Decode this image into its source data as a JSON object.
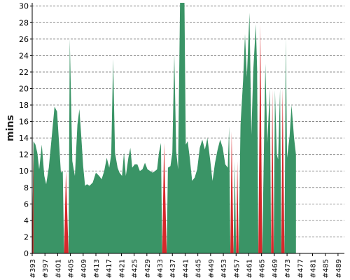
{
  "chart_data": {
    "type": "area",
    "ylabel": "mins",
    "ylim": [
      0,
      30.4
    ],
    "yticks": [
      0,
      2,
      4,
      6,
      8,
      10,
      12,
      14,
      16,
      18,
      20,
      22,
      24,
      26,
      28,
      30
    ],
    "grid": "horizontal dashed",
    "x_tick_labels": [
      "#393",
      "#397",
      "#401",
      "#405",
      "#409",
      "#413",
      "#417",
      "#421",
      "#425",
      "#429",
      "#433",
      "#437",
      "#441",
      "#445",
      "#449",
      "#453",
      "#457",
      "#461",
      "#465",
      "#469",
      "#473",
      "#477",
      "#481",
      "#485",
      "#489"
    ],
    "series": [
      {
        "color": "#3a9466",
        "values": [
          [
            393,
            0
          ],
          [
            393.4,
            13.6
          ],
          [
            394,
            13.2
          ],
          [
            394.6,
            12.2
          ],
          [
            395.2,
            10.2
          ],
          [
            396,
            13.2
          ],
          [
            396.8,
            9.4
          ],
          [
            397.4,
            8.4
          ],
          [
            398.2,
            10.4
          ],
          [
            399.2,
            14.4
          ],
          [
            400,
            17.8
          ],
          [
            400.8,
            17.2
          ],
          [
            401.4,
            13.6
          ],
          [
            402,
            9.8
          ],
          [
            402.6,
            10.0
          ],
          [
            403,
            0
          ],
          [
            404.4,
            0
          ],
          [
            404.8,
            26.0
          ],
          [
            405.6,
            11.2
          ],
          [
            406.4,
            9.4
          ],
          [
            407.2,
            15.6
          ],
          [
            407.8,
            17.5
          ],
          [
            408.4,
            14.2
          ],
          [
            409,
            10.6
          ],
          [
            409.6,
            8.2
          ],
          [
            410.2,
            8.4
          ],
          [
            411,
            8.2
          ],
          [
            412,
            8.6
          ],
          [
            413,
            9.8
          ],
          [
            414,
            9.4
          ],
          [
            414.8,
            9.0
          ],
          [
            415.6,
            10.0
          ],
          [
            416.4,
            11.6
          ],
          [
            417.2,
            10.4
          ],
          [
            417.8,
            12.0
          ],
          [
            418.4,
            23.6
          ],
          [
            419,
            12.2
          ],
          [
            419.8,
            10.4
          ],
          [
            420.4,
            9.8
          ],
          [
            421.2,
            9.4
          ],
          [
            421.8,
            12.2
          ],
          [
            422.4,
            9.4
          ],
          [
            423.2,
            11.6
          ],
          [
            423.8,
            12.8
          ],
          [
            424.4,
            10.4
          ],
          [
            425.2,
            10.8
          ],
          [
            426,
            10.8
          ],
          [
            426.8,
            10.0
          ],
          [
            427.6,
            10.2
          ],
          [
            428.4,
            11.0
          ],
          [
            429.2,
            10.2
          ],
          [
            430,
            10.0
          ],
          [
            430.8,
            9.8
          ],
          [
            431.6,
            10.0
          ],
          [
            432.2,
            10.2
          ],
          [
            432.8,
            12.2
          ],
          [
            433.4,
            13.4
          ],
          [
            433.8,
            0
          ],
          [
            435.2,
            0
          ],
          [
            435.6,
            10.4
          ],
          [
            436.4,
            10.6
          ],
          [
            437,
            12.2
          ],
          [
            437.6,
            24.2
          ],
          [
            438.2,
            12.4
          ],
          [
            438.8,
            10.2
          ],
          [
            439.4,
            30.4
          ],
          [
            440.8,
            30.4
          ],
          [
            441.2,
            13.2
          ],
          [
            441.8,
            13.6
          ],
          [
            442.4,
            11.8
          ],
          [
            443.2,
            8.8
          ],
          [
            444,
            9.2
          ],
          [
            444.8,
            10.2
          ],
          [
            445.6,
            12.8
          ],
          [
            446.4,
            13.8
          ],
          [
            447.2,
            12.6
          ],
          [
            448,
            14.0
          ],
          [
            448.8,
            11.6
          ],
          [
            449.6,
            8.8
          ],
          [
            450.4,
            11.0
          ],
          [
            451.2,
            12.6
          ],
          [
            452,
            13.8
          ],
          [
            452.8,
            12.8
          ],
          [
            453.6,
            10.8
          ],
          [
            454.4,
            10.4
          ],
          [
            454.8,
            15.4
          ],
          [
            455.2,
            0
          ],
          [
            456.2,
            0
          ],
          [
            456.6,
            11.2
          ],
          [
            457,
            0
          ],
          [
            457.8,
            0
          ],
          [
            458.4,
            15.6
          ],
          [
            459.2,
            21.0
          ],
          [
            459.8,
            26.6
          ],
          [
            460.4,
            21.4
          ],
          [
            461.2,
            29.2
          ],
          [
            461.8,
            14.4
          ],
          [
            462.4,
            22.2
          ],
          [
            463.2,
            27.8
          ],
          [
            463.6,
            22.4
          ],
          [
            464,
            0
          ],
          [
            465.2,
            0
          ],
          [
            465.8,
            14.0
          ],
          [
            466.2,
            23.0
          ],
          [
            466.8,
            13.4
          ],
          [
            467.6,
            20.0
          ],
          [
            468,
            0
          ],
          [
            468.8,
            0
          ],
          [
            469.2,
            19.8
          ],
          [
            469.8,
            12.0
          ],
          [
            470.2,
            11.4
          ],
          [
            470.8,
            20.0
          ],
          [
            471.2,
            0
          ],
          [
            472.2,
            0
          ],
          [
            472.6,
            26.2
          ],
          [
            473,
            11.6
          ],
          [
            473.8,
            14.2
          ],
          [
            474.4,
            18.0
          ],
          [
            475.2,
            14.0
          ],
          [
            475.8,
            12.0
          ],
          [
            475.8,
            0
          ]
        ]
      },
      {
        "color": "#d7282b",
        "values": [
          [
            393,
            0
          ],
          [
            393.4,
            13.6
          ],
          [
            393.4,
            0
          ],
          [
            403,
            0
          ],
          [
            403.6,
            10.0
          ],
          [
            404.4,
            0
          ],
          [
            433.8,
            0
          ],
          [
            434.4,
            13.4
          ],
          [
            435.2,
            0
          ],
          [
            455.2,
            0
          ],
          [
            455.6,
            14.8
          ],
          [
            456.2,
            0
          ],
          [
            457,
            0
          ],
          [
            457.4,
            11.2
          ],
          [
            457.8,
            0
          ],
          [
            464,
            0
          ],
          [
            464.6,
            27.8
          ],
          [
            465.2,
            0
          ],
          [
            468,
            0
          ],
          [
            468.4,
            19.8
          ],
          [
            468.8,
            0
          ],
          [
            471.2,
            0
          ],
          [
            471.6,
            20.0
          ],
          [
            472.2,
            0
          ]
        ]
      }
    ]
  }
}
